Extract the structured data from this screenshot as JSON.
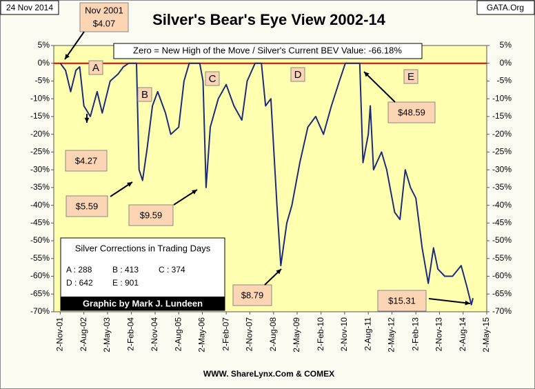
{
  "chart_data": {
    "type": "line",
    "title": "Silver's Bear's Eye View 2002-14",
    "date_label": "24 Nov 2014",
    "source_tag": "GATA.Org",
    "footer": "WWW. ShareLynx.Com & COMEX",
    "info": "Zero = New High of the Move / Silver's Current BEV Value: -66.18%",
    "credit": "Graphic by Mark J. Lundeen",
    "legend_title": "Silver Corrections in Trading Days",
    "corrections": [
      "A : 288",
      "B : 413",
      "C : 374",
      "D : 642",
      "E : 901"
    ],
    "letters": [
      "A",
      "B",
      "C",
      "D",
      "E"
    ],
    "price_notes": [
      "Nov 2001",
      "$4.07",
      "$4.27",
      "$5.59",
      "$9.59",
      "$8.79",
      "$48.59",
      "$15.31"
    ],
    "hline": 0,
    "hline_color": "#e00000",
    "background": "#ffffb0",
    "series": [
      {
        "name": "Silver BEV",
        "color": "#1c2a7a",
        "x": [
          "2001-11-02",
          "2002-01-02",
          "2002-03-02",
          "2002-05-02",
          "2002-06-15",
          "2002-08-02",
          "2002-10-15",
          "2003-01-02",
          "2003-03-02",
          "2003-06-02",
          "2003-09-02",
          "2003-11-02",
          "2004-01-02",
          "2004-04-01",
          "2004-05-01",
          "2004-06-10",
          "2004-08-02",
          "2004-10-02",
          "2004-12-02",
          "2005-03-02",
          "2005-05-02",
          "2005-08-02",
          "2005-10-02",
          "2005-12-02",
          "2006-04-02",
          "2006-05-10",
          "2006-06-14",
          "2006-08-02",
          "2006-11-02",
          "2007-02-02",
          "2007-05-02",
          "2007-08-02",
          "2007-10-02",
          "2008-01-02",
          "2008-03-15",
          "2008-05-02",
          "2008-07-02",
          "2008-09-10",
          "2008-10-25",
          "2009-01-02",
          "2009-03-02",
          "2009-06-02",
          "2009-09-02",
          "2009-12-02",
          "2010-03-02",
          "2010-06-02",
          "2010-09-02",
          "2010-11-10",
          "2011-04-25",
          "2011-06-02",
          "2011-08-02",
          "2011-08-25",
          "2011-10-02",
          "2012-01-02",
          "2012-03-02",
          "2012-06-02",
          "2012-08-02",
          "2012-10-02",
          "2012-12-02",
          "2013-02-02",
          "2013-04-15",
          "2013-06-25",
          "2013-08-25",
          "2013-10-15",
          "2014-01-02",
          "2014-04-02",
          "2014-07-10",
          "2014-09-15",
          "2014-11-05",
          "2014-11-24"
        ],
        "values": [
          0,
          -2,
          -8,
          -2,
          -1,
          -12,
          -15,
          -8,
          -14,
          -5,
          -3,
          -1,
          0,
          0,
          -30,
          -33,
          -24,
          -12,
          -8,
          -14,
          -20,
          -18,
          -5,
          0,
          0,
          -5,
          -35,
          -18,
          -10,
          -6,
          -12,
          -16,
          -5,
          0,
          0,
          -12,
          -10,
          -40,
          -57,
          -45,
          -40,
          -28,
          -18,
          -15,
          -20,
          -12,
          -5,
          0,
          0,
          -28,
          -20,
          -12,
          -30,
          -25,
          -30,
          -42,
          -44,
          -30,
          -35,
          -38,
          -52,
          -62,
          -52,
          -58,
          -60,
          -60,
          -57,
          -63,
          -68,
          -66.18
        ]
      }
    ],
    "xlim": [
      "2001-08-19",
      "2015-05-02"
    ],
    "xticks": [
      {
        "value": "2001-11-02",
        "label": "2-Nov-01"
      },
      {
        "value": "2002-08-02",
        "label": "2-Aug-02"
      },
      {
        "value": "2003-05-02",
        "label": "2-May-03"
      },
      {
        "value": "2004-02-02",
        "label": "2-Feb-04"
      },
      {
        "value": "2004-11-02",
        "label": "2-Nov-04"
      },
      {
        "value": "2005-08-02",
        "label": "2-Aug-05"
      },
      {
        "value": "2006-05-02",
        "label": "2-May-06"
      },
      {
        "value": "2007-02-02",
        "label": "2-Feb-07"
      },
      {
        "value": "2007-11-02",
        "label": "2-Nov-07"
      },
      {
        "value": "2008-08-02",
        "label": "2-Aug-08"
      },
      {
        "value": "2009-05-02",
        "label": "2-May-09"
      },
      {
        "value": "2010-02-02",
        "label": "2-Feb-10"
      },
      {
        "value": "2010-11-02",
        "label": "2-Nov-10"
      },
      {
        "value": "2011-08-02",
        "label": "2-Aug-11"
      },
      {
        "value": "2012-05-02",
        "label": "2-May-12"
      },
      {
        "value": "2013-02-02",
        "label": "2-Feb-13"
      },
      {
        "value": "2013-11-02",
        "label": "2-Nov-13"
      },
      {
        "value": "2014-08-02",
        "label": "2-Aug-14"
      },
      {
        "value": "2015-05-02",
        "label": "2-May-15"
      }
    ],
    "ylim": [
      -70,
      5
    ],
    "yticks": [
      {
        "value": 5,
        "label": "5%"
      },
      {
        "value": 0,
        "label": "0%"
      },
      {
        "value": -5,
        "label": "-5%"
      },
      {
        "value": -10,
        "label": "-10%"
      },
      {
        "value": -15,
        "label": "-15%"
      },
      {
        "value": -20,
        "label": "-20%"
      },
      {
        "value": -25,
        "label": "-25%"
      },
      {
        "value": -30,
        "label": "-30%"
      },
      {
        "value": -35,
        "label": "-35%"
      },
      {
        "value": -40,
        "label": "-40%"
      },
      {
        "value": -45,
        "label": "-45%"
      },
      {
        "value": -50,
        "label": "-50%"
      },
      {
        "value": -55,
        "label": "-55%"
      },
      {
        "value": -60,
        "label": "-60%"
      },
      {
        "value": -65,
        "label": "-65%"
      },
      {
        "value": -70,
        "label": "-70%"
      }
    ],
    "y2lim": [
      -70,
      5
    ],
    "y2ticks": [
      {
        "value": 5,
        "label": "5%"
      },
      {
        "value": 0,
        "label": "0%"
      },
      {
        "value": -5,
        "label": "-5%"
      },
      {
        "value": -10,
        "label": "-10%"
      },
      {
        "value": -15,
        "label": "-15%"
      },
      {
        "value": -20,
        "label": "-20%"
      },
      {
        "value": -25,
        "label": "-25%"
      },
      {
        "value": -30,
        "label": "-30%"
      },
      {
        "value": -35,
        "label": "-35%"
      },
      {
        "value": -40,
        "label": "-40%"
      },
      {
        "value": -45,
        "label": "-45%"
      },
      {
        "value": -50,
        "label": "-50%"
      },
      {
        "value": -55,
        "label": "-55%"
      },
      {
        "value": -60,
        "label": "-60%"
      },
      {
        "value": -65,
        "label": "-65%"
      },
      {
        "value": -70,
        "label": "-70%"
      }
    ]
  }
}
